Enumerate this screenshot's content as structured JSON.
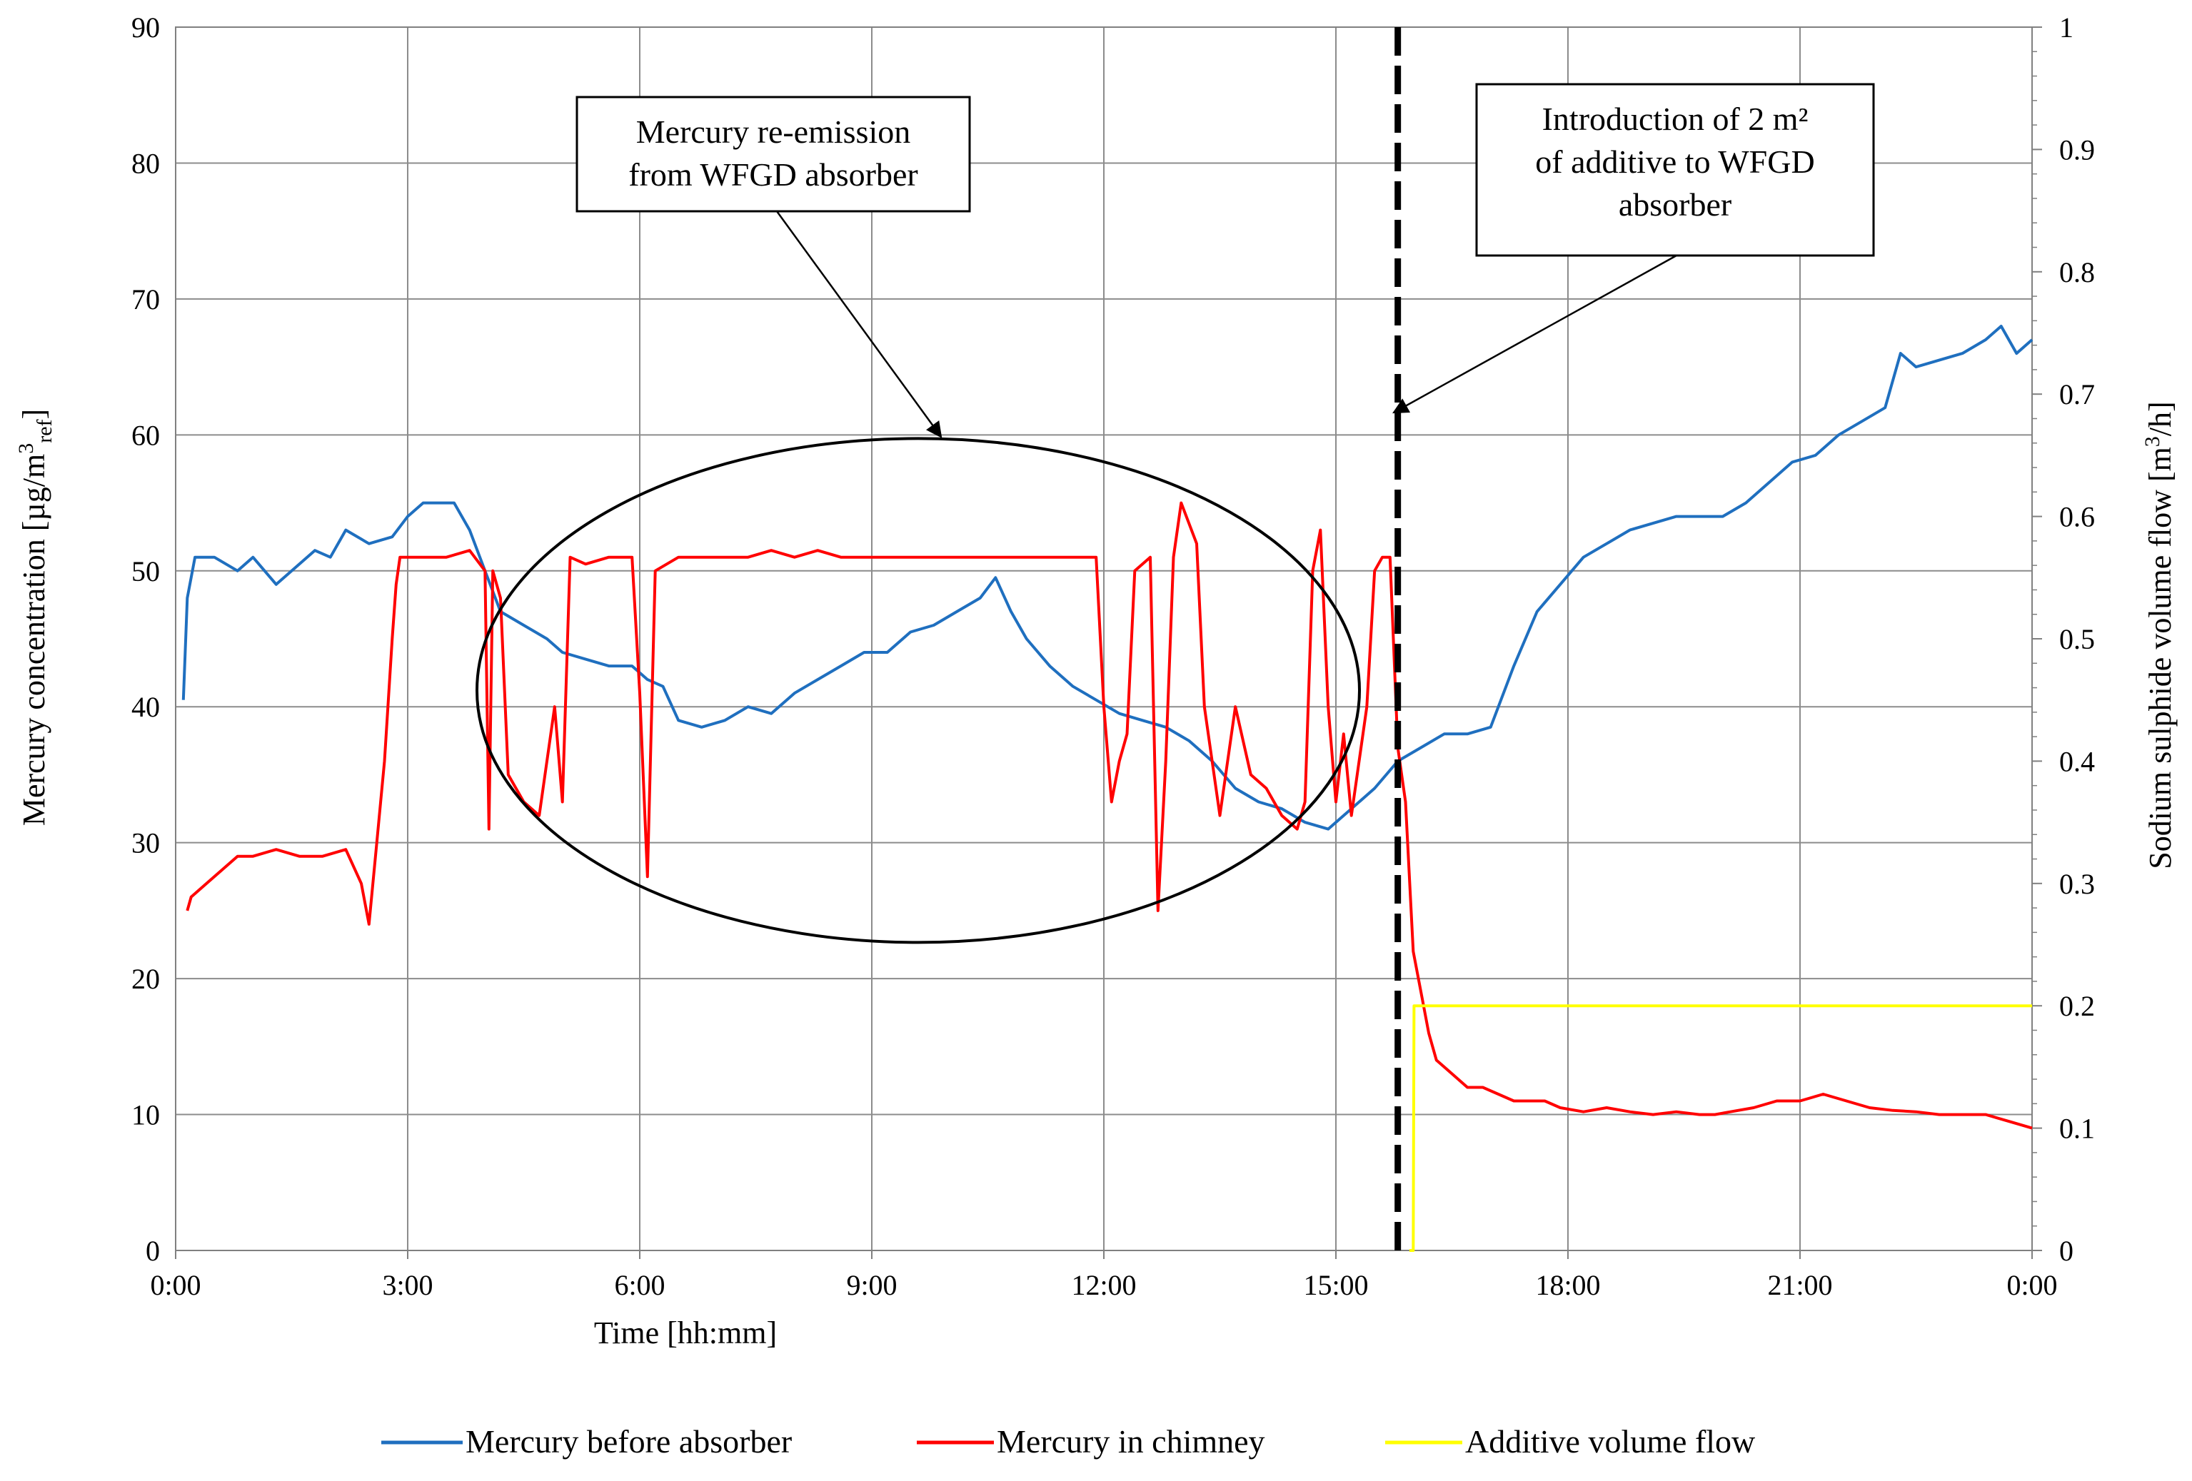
{
  "chart_data": {
    "type": "line",
    "xlabel": "Time [hh:mm]",
    "ylabel_left": {
      "main": "Mercury concentration [µg/m",
      "sup": "3",
      "sub": "ref",
      "close": "]"
    },
    "ylabel_right": {
      "main": "Sodium sulphide volume flow [m",
      "sup": "3",
      "close": "/h]"
    },
    "x_ticks": [
      "0:00",
      "3:00",
      "6:00",
      "9:00",
      "12:00",
      "15:00",
      "18:00",
      "21:00",
      "0:00"
    ],
    "x_range_hours": [
      0,
      24
    ],
    "y_left_range": [
      0,
      90
    ],
    "y_left_ticks": [
      "0",
      "10",
      "20",
      "30",
      "40",
      "50",
      "60",
      "70",
      "80",
      "90"
    ],
    "y_right_range": [
      0,
      1
    ],
    "y_right_ticks": [
      "0",
      "0.1",
      "0.2",
      "0.3",
      "0.4",
      "0.5",
      "0.6",
      "0.7",
      "0.8",
      "0.9",
      "1"
    ],
    "grid": true,
    "legend_position": "bottom",
    "annotations": {
      "reemission": {
        "lines": [
          "Mercury re-emission",
          "from WFGD absorber"
        ],
        "ellipse_center_hours": 9.6,
        "ellipse_center_value": 41.2
      },
      "additive": {
        "lines": [
          "Introduction of 2 m²",
          "of additive to WFGD",
          "absorber"
        ],
        "event_time_hours": 15.8
      }
    },
    "series": [
      {
        "name": "Mercury before absorber",
        "color": "#1f6fbf",
        "axis": "left",
        "points": [
          [
            0.1,
            40.5
          ],
          [
            0.15,
            48
          ],
          [
            0.25,
            51
          ],
          [
            0.5,
            51
          ],
          [
            0.8,
            50
          ],
          [
            1.0,
            51
          ],
          [
            1.3,
            49
          ],
          [
            1.5,
            50
          ],
          [
            1.8,
            51.5
          ],
          [
            2.0,
            51
          ],
          [
            2.2,
            53
          ],
          [
            2.5,
            52
          ],
          [
            2.8,
            52.5
          ],
          [
            3.0,
            54
          ],
          [
            3.2,
            55
          ],
          [
            3.4,
            55
          ],
          [
            3.6,
            55
          ],
          [
            3.8,
            53
          ],
          [
            4.0,
            50
          ],
          [
            4.2,
            47
          ],
          [
            4.5,
            46
          ],
          [
            4.8,
            45
          ],
          [
            5.0,
            44
          ],
          [
            5.3,
            43.5
          ],
          [
            5.6,
            43
          ],
          [
            5.9,
            43
          ],
          [
            6.1,
            42
          ],
          [
            6.3,
            41.5
          ],
          [
            6.5,
            39
          ],
          [
            6.8,
            38.5
          ],
          [
            7.1,
            39
          ],
          [
            7.4,
            40
          ],
          [
            7.7,
            39.5
          ],
          [
            8.0,
            41
          ],
          [
            8.3,
            42
          ],
          [
            8.6,
            43
          ],
          [
            8.9,
            44
          ],
          [
            9.2,
            44
          ],
          [
            9.5,
            45.5
          ],
          [
            9.8,
            46
          ],
          [
            10.1,
            47
          ],
          [
            10.4,
            48
          ],
          [
            10.6,
            49.5
          ],
          [
            10.8,
            47
          ],
          [
            11.0,
            45
          ],
          [
            11.3,
            43
          ],
          [
            11.6,
            41.5
          ],
          [
            11.9,
            40.5
          ],
          [
            12.2,
            39.5
          ],
          [
            12.5,
            39
          ],
          [
            12.8,
            38.5
          ],
          [
            13.1,
            37.5
          ],
          [
            13.4,
            36
          ],
          [
            13.7,
            34
          ],
          [
            14.0,
            33
          ],
          [
            14.3,
            32.5
          ],
          [
            14.6,
            31.5
          ],
          [
            14.9,
            31
          ],
          [
            15.2,
            32.5
          ],
          [
            15.5,
            34
          ],
          [
            15.8,
            36
          ],
          [
            16.1,
            37
          ],
          [
            16.4,
            38
          ],
          [
            16.7,
            38
          ],
          [
            17.0,
            38.5
          ],
          [
            17.3,
            43
          ],
          [
            17.6,
            47
          ],
          [
            17.9,
            49
          ],
          [
            18.2,
            51
          ],
          [
            18.5,
            52
          ],
          [
            18.8,
            53
          ],
          [
            19.1,
            53.5
          ],
          [
            19.4,
            54
          ],
          [
            19.7,
            54
          ],
          [
            20.0,
            54
          ],
          [
            20.3,
            55
          ],
          [
            20.6,
            56.5
          ],
          [
            20.9,
            58
          ],
          [
            21.2,
            58.5
          ],
          [
            21.5,
            60
          ],
          [
            21.8,
            61
          ],
          [
            22.1,
            62
          ],
          [
            22.3,
            66
          ],
          [
            22.5,
            65
          ],
          [
            22.8,
            65.5
          ],
          [
            23.1,
            66
          ],
          [
            23.4,
            67
          ],
          [
            23.6,
            68
          ],
          [
            23.8,
            66
          ],
          [
            24.0,
            67
          ]
        ]
      },
      {
        "name": "Mercury in chimney",
        "color": "#ff0000",
        "axis": "left",
        "points": [
          [
            0.15,
            25
          ],
          [
            0.2,
            26
          ],
          [
            0.4,
            27
          ],
          [
            0.6,
            28
          ],
          [
            0.8,
            29
          ],
          [
            1.0,
            29
          ],
          [
            1.3,
            29.5
          ],
          [
            1.6,
            29
          ],
          [
            1.9,
            29
          ],
          [
            2.2,
            29.5
          ],
          [
            2.4,
            27
          ],
          [
            2.5,
            24
          ],
          [
            2.6,
            30
          ],
          [
            2.7,
            36
          ],
          [
            2.8,
            45
          ],
          [
            2.85,
            49
          ],
          [
            2.9,
            51
          ],
          [
            3.2,
            51
          ],
          [
            3.5,
            51
          ],
          [
            3.8,
            51.5
          ],
          [
            4.0,
            50
          ],
          [
            4.05,
            31
          ],
          [
            4.1,
            50
          ],
          [
            4.2,
            48
          ],
          [
            4.3,
            35
          ],
          [
            4.5,
            33
          ],
          [
            4.7,
            32
          ],
          [
            4.9,
            40
          ],
          [
            5.0,
            33
          ],
          [
            5.1,
            51
          ],
          [
            5.3,
            50.5
          ],
          [
            5.6,
            51
          ],
          [
            5.9,
            51
          ],
          [
            6.0,
            41
          ],
          [
            6.1,
            27.5
          ],
          [
            6.2,
            50
          ],
          [
            6.5,
            51
          ],
          [
            6.8,
            51
          ],
          [
            7.1,
            51
          ],
          [
            7.4,
            51
          ],
          [
            7.7,
            51.5
          ],
          [
            8.0,
            51
          ],
          [
            8.3,
            51.5
          ],
          [
            8.6,
            51
          ],
          [
            8.9,
            51
          ],
          [
            9.2,
            51
          ],
          [
            9.5,
            51
          ],
          [
            9.8,
            51
          ],
          [
            10.1,
            51
          ],
          [
            10.4,
            51
          ],
          [
            10.7,
            51
          ],
          [
            11.0,
            51
          ],
          [
            11.3,
            51
          ],
          [
            11.6,
            51
          ],
          [
            11.9,
            51
          ],
          [
            12.0,
            40
          ],
          [
            12.1,
            33
          ],
          [
            12.2,
            36
          ],
          [
            12.3,
            38
          ],
          [
            12.4,
            50
          ],
          [
            12.6,
            51
          ],
          [
            12.7,
            25
          ],
          [
            12.8,
            36
          ],
          [
            12.9,
            51
          ],
          [
            13.0,
            55
          ],
          [
            13.2,
            52
          ],
          [
            13.3,
            40
          ],
          [
            13.5,
            32
          ],
          [
            13.7,
            40
          ],
          [
            13.9,
            35
          ],
          [
            14.1,
            34
          ],
          [
            14.3,
            32
          ],
          [
            14.5,
            31
          ],
          [
            14.6,
            33
          ],
          [
            14.7,
            50
          ],
          [
            14.8,
            53
          ],
          [
            14.9,
            40
          ],
          [
            15.0,
            33
          ],
          [
            15.1,
            38
          ],
          [
            15.2,
            32
          ],
          [
            15.4,
            40
          ],
          [
            15.5,
            50
          ],
          [
            15.6,
            51
          ],
          [
            15.7,
            51
          ],
          [
            15.8,
            37
          ],
          [
            15.9,
            33
          ],
          [
            16.0,
            22
          ],
          [
            16.1,
            19
          ],
          [
            16.2,
            16
          ],
          [
            16.3,
            14
          ],
          [
            16.5,
            13
          ],
          [
            16.7,
            12
          ],
          [
            16.9,
            12
          ],
          [
            17.1,
            11.5
          ],
          [
            17.3,
            11
          ],
          [
            17.5,
            11
          ],
          [
            17.7,
            11
          ],
          [
            17.9,
            10.5
          ],
          [
            18.2,
            10.2
          ],
          [
            18.5,
            10.5
          ],
          [
            18.8,
            10.2
          ],
          [
            19.1,
            10
          ],
          [
            19.4,
            10.2
          ],
          [
            19.7,
            10
          ],
          [
            19.9,
            10
          ],
          [
            20.1,
            10.2
          ],
          [
            20.4,
            10.5
          ],
          [
            20.7,
            11
          ],
          [
            21.0,
            11
          ],
          [
            21.3,
            11.5
          ],
          [
            21.6,
            11
          ],
          [
            21.9,
            10.5
          ],
          [
            22.2,
            10.3
          ],
          [
            22.5,
            10.2
          ],
          [
            22.8,
            10
          ],
          [
            23.1,
            10
          ],
          [
            23.4,
            10
          ],
          [
            23.7,
            9.5
          ],
          [
            24.0,
            9
          ]
        ]
      },
      {
        "name": "Additive volume flow",
        "color": "#ffff00",
        "axis": "right",
        "points": [
          [
            15.95,
            0
          ],
          [
            16.0,
            0
          ],
          [
            16.01,
            0.2
          ],
          [
            24.0,
            0.2
          ]
        ]
      }
    ]
  }
}
